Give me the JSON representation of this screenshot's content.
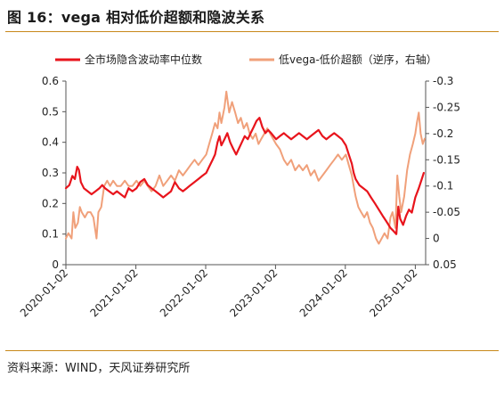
{
  "title": "图 16：vega 相对低价超额和隐波关系",
  "source": "资料来源：WIND，天风证券研究所",
  "chart_data": {
    "type": "line",
    "x_dates": [
      "2020-01-02",
      "2021-01-02",
      "2022-01-02",
      "2023-01-02",
      "2024-01-02",
      "2025-01-02"
    ],
    "x_tick_labels": [
      "2020-01-02",
      "2021-01-02",
      "2022-01-02",
      "2023-01-02",
      "2024-01-02",
      "2025-01-02"
    ],
    "y_left": {
      "range": [
        0,
        0.6
      ],
      "ticks": [
        0,
        0.1,
        0.2,
        0.3,
        0.4,
        0.5,
        0.6
      ],
      "tick_labels": [
        "0",
        "0.1",
        "0.2",
        "0.3",
        "0.4",
        "0.5",
        "0.6"
      ]
    },
    "y_right": {
      "range": [
        0.05,
        -0.3
      ],
      "inverted": true,
      "ticks": [
        0.05,
        0,
        -0.05,
        -0.1,
        -0.15,
        -0.2,
        -0.25,
        -0.3
      ],
      "tick_labels": [
        "0.05",
        "0",
        "-0.05",
        "-0.1",
        "-0.15",
        "-0.2",
        "-0.25",
        "-0.3"
      ]
    },
    "legend_position": "top",
    "grid": false,
    "series": [
      {
        "name": "全市场隐含波动率中位数",
        "axis": "left",
        "color": "#e8141c",
        "points": [
          [
            "2020-01-02",
            0.25
          ],
          [
            "2020-01-20",
            0.26
          ],
          [
            "2020-02-05",
            0.29
          ],
          [
            "2020-02-18",
            0.28
          ],
          [
            "2020-03-01",
            0.32
          ],
          [
            "2020-03-10",
            0.31
          ],
          [
            "2020-03-20",
            0.27
          ],
          [
            "2020-04-05",
            0.25
          ],
          [
            "2020-04-25",
            0.24
          ],
          [
            "2020-05-15",
            0.23
          ],
          [
            "2020-06-05",
            0.24
          ],
          [
            "2020-06-25",
            0.25
          ],
          [
            "2020-07-10",
            0.26
          ],
          [
            "2020-07-25",
            0.25
          ],
          [
            "2020-08-15",
            0.24
          ],
          [
            "2020-09-05",
            0.23
          ],
          [
            "2020-09-25",
            0.24
          ],
          [
            "2020-10-15",
            0.23
          ],
          [
            "2020-11-05",
            0.22
          ],
          [
            "2020-11-25",
            0.25
          ],
          [
            "2020-12-15",
            0.24
          ],
          [
            "2021-01-05",
            0.25
          ],
          [
            "2021-01-25",
            0.27
          ],
          [
            "2021-02-15",
            0.28
          ],
          [
            "2021-03-05",
            0.26
          ],
          [
            "2021-03-25",
            0.25
          ],
          [
            "2021-04-15",
            0.24
          ],
          [
            "2021-05-05",
            0.23
          ],
          [
            "2021-05-25",
            0.22
          ],
          [
            "2021-06-15",
            0.23
          ],
          [
            "2021-07-05",
            0.24
          ],
          [
            "2021-07-25",
            0.27
          ],
          [
            "2021-08-15",
            0.25
          ],
          [
            "2021-09-05",
            0.24
          ],
          [
            "2021-09-25",
            0.25
          ],
          [
            "2021-10-15",
            0.26
          ],
          [
            "2021-11-05",
            0.27
          ],
          [
            "2021-11-25",
            0.28
          ],
          [
            "2021-12-15",
            0.29
          ],
          [
            "2022-01-05",
            0.3
          ],
          [
            "2022-01-20",
            0.32
          ],
          [
            "2022-02-05",
            0.34
          ],
          [
            "2022-02-20",
            0.36
          ],
          [
            "2022-03-05",
            0.4
          ],
          [
            "2022-03-15",
            0.42
          ],
          [
            "2022-03-25",
            0.39
          ],
          [
            "2022-04-10",
            0.41
          ],
          [
            "2022-04-25",
            0.43
          ],
          [
            "2022-05-10",
            0.4
          ],
          [
            "2022-05-25",
            0.38
          ],
          [
            "2022-06-10",
            0.36
          ],
          [
            "2022-06-25",
            0.38
          ],
          [
            "2022-07-10",
            0.4
          ],
          [
            "2022-07-25",
            0.42
          ],
          [
            "2022-08-10",
            0.41
          ],
          [
            "2022-08-25",
            0.43
          ],
          [
            "2022-09-10",
            0.45
          ],
          [
            "2022-09-25",
            0.47
          ],
          [
            "2022-10-10",
            0.48
          ],
          [
            "2022-10-25",
            0.45
          ],
          [
            "2022-11-10",
            0.43
          ],
          [
            "2022-11-25",
            0.44
          ],
          [
            "2022-12-10",
            0.43
          ],
          [
            "2023-01-05",
            0.41
          ],
          [
            "2023-01-25",
            0.42
          ],
          [
            "2023-02-15",
            0.43
          ],
          [
            "2023-03-05",
            0.42
          ],
          [
            "2023-03-25",
            0.41
          ],
          [
            "2023-04-15",
            0.42
          ],
          [
            "2023-05-05",
            0.43
          ],
          [
            "2023-05-25",
            0.42
          ],
          [
            "2023-06-15",
            0.41
          ],
          [
            "2023-07-05",
            0.42
          ],
          [
            "2023-07-25",
            0.43
          ],
          [
            "2023-08-15",
            0.44
          ],
          [
            "2023-09-05",
            0.42
          ],
          [
            "2023-09-25",
            0.41
          ],
          [
            "2023-10-15",
            0.42
          ],
          [
            "2023-11-05",
            0.43
          ],
          [
            "2023-11-25",
            0.42
          ],
          [
            "2023-12-15",
            0.41
          ],
          [
            "2024-01-05",
            0.39
          ],
          [
            "2024-01-20",
            0.36
          ],
          [
            "2024-02-05",
            0.33
          ],
          [
            "2024-02-15",
            0.3
          ],
          [
            "2024-02-25",
            0.28
          ],
          [
            "2024-03-15",
            0.26
          ],
          [
            "2024-04-05",
            0.25
          ],
          [
            "2024-04-25",
            0.24
          ],
          [
            "2024-05-15",
            0.22
          ],
          [
            "2024-06-05",
            0.2
          ],
          [
            "2024-06-25",
            0.18
          ],
          [
            "2024-07-15",
            0.16
          ],
          [
            "2024-08-05",
            0.14
          ],
          [
            "2024-08-25",
            0.12
          ],
          [
            "2024-09-10",
            0.11
          ],
          [
            "2024-09-25",
            0.1
          ],
          [
            "2024-10-05",
            0.19
          ],
          [
            "2024-10-15",
            0.15
          ],
          [
            "2024-10-30",
            0.13
          ],
          [
            "2024-11-15",
            0.16
          ],
          [
            "2024-11-30",
            0.18
          ],
          [
            "2024-12-15",
            0.17
          ],
          [
            "2025-01-02",
            0.22
          ],
          [
            "2025-01-20",
            0.25
          ],
          [
            "2025-02-05",
            0.28
          ],
          [
            "2025-02-15",
            0.3
          ]
        ]
      },
      {
        "name": "低vega-低价超额（逆序，右轴）",
        "axis": "right",
        "color": "#f0a07a",
        "points": [
          [
            "2020-01-02",
            0.0
          ],
          [
            "2020-01-15",
            -0.01
          ],
          [
            "2020-02-01",
            0.0
          ],
          [
            "2020-02-10",
            -0.05
          ],
          [
            "2020-02-20",
            -0.02
          ],
          [
            "2020-03-05",
            -0.03
          ],
          [
            "2020-03-15",
            -0.06
          ],
          [
            "2020-03-25",
            -0.05
          ],
          [
            "2020-04-10",
            -0.04
          ],
          [
            "2020-04-25",
            -0.05
          ],
          [
            "2020-05-10",
            -0.05
          ],
          [
            "2020-05-25",
            -0.04
          ],
          [
            "2020-06-10",
            0.0
          ],
          [
            "2020-06-20",
            -0.05
          ],
          [
            "2020-07-05",
            -0.06
          ],
          [
            "2020-07-20",
            -0.1
          ],
          [
            "2020-08-05",
            -0.11
          ],
          [
            "2020-08-20",
            -0.1
          ],
          [
            "2020-09-05",
            -0.11
          ],
          [
            "2020-09-25",
            -0.1
          ],
          [
            "2020-10-15",
            -0.1
          ],
          [
            "2020-11-05",
            -0.11
          ],
          [
            "2020-11-25",
            -0.1
          ],
          [
            "2020-12-15",
            -0.1
          ],
          [
            "2021-01-05",
            -0.11
          ],
          [
            "2021-01-25",
            -0.1
          ],
          [
            "2021-02-15",
            -0.11
          ],
          [
            "2021-03-05",
            -0.1
          ],
          [
            "2021-03-25",
            -0.09
          ],
          [
            "2021-04-15",
            -0.1
          ],
          [
            "2021-05-05",
            -0.12
          ],
          [
            "2021-05-25",
            -0.1
          ],
          [
            "2021-06-15",
            -0.11
          ],
          [
            "2021-07-05",
            -0.12
          ],
          [
            "2021-07-25",
            -0.11
          ],
          [
            "2021-08-15",
            -0.13
          ],
          [
            "2021-09-05",
            -0.12
          ],
          [
            "2021-09-25",
            -0.13
          ],
          [
            "2021-10-15",
            -0.14
          ],
          [
            "2021-11-05",
            -0.15
          ],
          [
            "2021-11-25",
            -0.14
          ],
          [
            "2021-12-15",
            -0.15
          ],
          [
            "2022-01-05",
            -0.16
          ],
          [
            "2022-01-20",
            -0.18
          ],
          [
            "2022-02-05",
            -0.2
          ],
          [
            "2022-02-20",
            -0.22
          ],
          [
            "2022-03-05",
            -0.21
          ],
          [
            "2022-03-15",
            -0.24
          ],
          [
            "2022-03-25",
            -0.22
          ],
          [
            "2022-04-10",
            -0.25
          ],
          [
            "2022-04-20",
            -0.28
          ],
          [
            "2022-05-05",
            -0.24
          ],
          [
            "2022-05-20",
            -0.26
          ],
          [
            "2022-06-05",
            -0.24
          ],
          [
            "2022-06-20",
            -0.22
          ],
          [
            "2022-07-05",
            -0.23
          ],
          [
            "2022-07-20",
            -0.21
          ],
          [
            "2022-08-05",
            -0.22
          ],
          [
            "2022-08-20",
            -0.2
          ],
          [
            "2022-09-05",
            -0.19
          ],
          [
            "2022-09-20",
            -0.2
          ],
          [
            "2022-10-05",
            -0.18
          ],
          [
            "2022-10-20",
            -0.19
          ],
          [
            "2022-11-05",
            -0.2
          ],
          [
            "2022-11-20",
            -0.21
          ],
          [
            "2022-12-05",
            -0.2
          ],
          [
            "2022-12-20",
            -0.19
          ],
          [
            "2023-01-05",
            -0.18
          ],
          [
            "2023-01-25",
            -0.17
          ],
          [
            "2023-02-15",
            -0.15
          ],
          [
            "2023-03-05",
            -0.14
          ],
          [
            "2023-03-25",
            -0.15
          ],
          [
            "2023-04-15",
            -0.13
          ],
          [
            "2023-05-05",
            -0.14
          ],
          [
            "2023-05-25",
            -0.13
          ],
          [
            "2023-06-15",
            -0.14
          ],
          [
            "2023-07-05",
            -0.12
          ],
          [
            "2023-07-25",
            -0.13
          ],
          [
            "2023-08-15",
            -0.11
          ],
          [
            "2023-09-05",
            -0.12
          ],
          [
            "2023-09-25",
            -0.13
          ],
          [
            "2023-10-15",
            -0.14
          ],
          [
            "2023-11-05",
            -0.15
          ],
          [
            "2023-11-25",
            -0.16
          ],
          [
            "2023-12-15",
            -0.15
          ],
          [
            "2024-01-05",
            -0.16
          ],
          [
            "2024-01-20",
            -0.14
          ],
          [
            "2024-02-05",
            -0.12
          ],
          [
            "2024-02-15",
            -0.1
          ],
          [
            "2024-02-25",
            -0.08
          ],
          [
            "2024-03-10",
            -0.06
          ],
          [
            "2024-03-25",
            -0.05
          ],
          [
            "2024-04-10",
            -0.04
          ],
          [
            "2024-04-25",
            -0.05
          ],
          [
            "2024-05-10",
            -0.03
          ],
          [
            "2024-05-25",
            -0.02
          ],
          [
            "2024-06-10",
            0.0
          ],
          [
            "2024-06-25",
            0.01
          ],
          [
            "2024-07-10",
            0.0
          ],
          [
            "2024-07-25",
            -0.01
          ],
          [
            "2024-08-10",
            0.0
          ],
          [
            "2024-08-25",
            -0.04
          ],
          [
            "2024-09-05",
            -0.05
          ],
          [
            "2024-09-20",
            -0.02
          ],
          [
            "2024-09-30",
            -0.12
          ],
          [
            "2024-10-10",
            -0.08
          ],
          [
            "2024-10-20",
            -0.05
          ],
          [
            "2024-11-05",
            -0.08
          ],
          [
            "2024-11-20",
            -0.13
          ],
          [
            "2024-12-05",
            -0.16
          ],
          [
            "2024-12-20",
            -0.18
          ],
          [
            "2025-01-02",
            -0.2
          ],
          [
            "2025-01-10",
            -0.22
          ],
          [
            "2025-01-20",
            -0.24
          ],
          [
            "2025-01-30",
            -0.2
          ],
          [
            "2025-02-10",
            -0.18
          ],
          [
            "2025-02-20",
            -0.19
          ]
        ]
      }
    ]
  }
}
